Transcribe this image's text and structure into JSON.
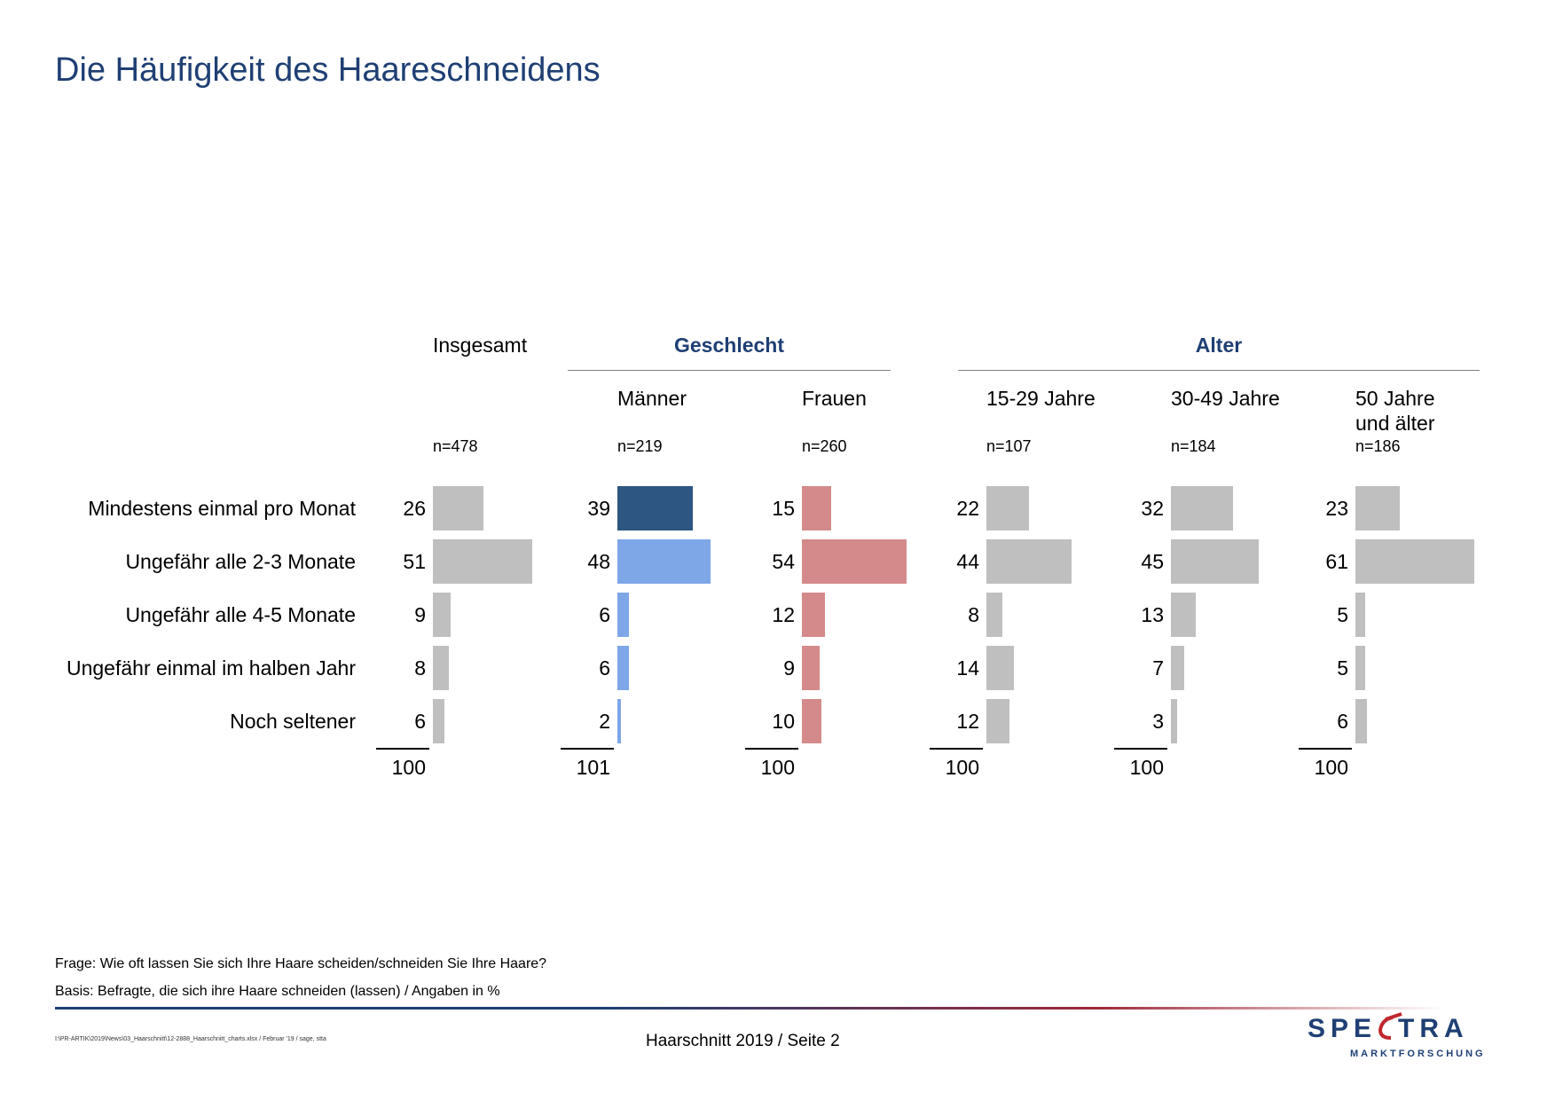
{
  "title": "Die Häufigkeit des Haareschneidens",
  "groups": {
    "insgesamt": "Insgesamt",
    "geschlecht": "Geschlecht",
    "alter": "Alter"
  },
  "footer": {
    "frage": "Frage: Wie oft lassen Sie sich Ihre Haare scheiden/schneiden Sie Ihre Haare?",
    "basis": "Basis: Befragte, die sich ihre Haare schneiden (lassen) / Angaben in %",
    "path": "I:\\PR-ARTIK\\2019\\News\\03_Haarschnitt\\12-2888_Haarschnitt_charts.xlsx / Februar '19 / sage, stta",
    "page": "Haarschnitt 2019  /  Seite  2"
  },
  "logo": {
    "name": "SPECTRA",
    "sub": "MARKTFORSCHUNG",
    "primary": "#1f3f74",
    "accent": "#c0282d"
  },
  "chart_data": {
    "type": "bar",
    "orientation": "horizontal",
    "unit": "%",
    "categories": [
      "Mindestens einmal pro Monat",
      "Ungefähr alle 2-3 Monate",
      "Ungefähr alle 4-5 Monate",
      "Ungefähr einmal im halben Jahr",
      "Noch seltener"
    ],
    "series": [
      {
        "name": "Insgesamt",
        "lines": [
          "",
          ""
        ],
        "n": "n=478",
        "values": [
          26,
          51,
          9,
          8,
          6
        ],
        "total": "100",
        "colors": [
          "#bfbfbf"
        ]
      },
      {
        "name": "Männer",
        "lines": [
          "Männer",
          ""
        ],
        "n": "n=219",
        "values": [
          39,
          48,
          6,
          6,
          2
        ],
        "total": "101",
        "colors": [
          "#2e5682",
          "#7ea7e8"
        ]
      },
      {
        "name": "Frauen",
        "lines": [
          "Frauen",
          ""
        ],
        "n": "n=260",
        "values": [
          15,
          54,
          12,
          9,
          10
        ],
        "total": "100",
        "colors": [
          "#d48a8a"
        ]
      },
      {
        "name": "15-29 Jahre",
        "lines": [
          "15-29 Jahre",
          ""
        ],
        "n": "n=107",
        "values": [
          22,
          44,
          8,
          14,
          12
        ],
        "total": "100",
        "colors": [
          "#bfbfbf"
        ]
      },
      {
        "name": "30-49 Jahre",
        "lines": [
          "30-49 Jahre",
          ""
        ],
        "n": "n=184",
        "values": [
          32,
          45,
          13,
          7,
          3
        ],
        "total": "100",
        "colors": [
          "#bfbfbf"
        ]
      },
      {
        "name": "50 Jahre und älter",
        "lines": [
          "50 Jahre",
          "und älter"
        ],
        "n": "n=186",
        "values": [
          23,
          61,
          5,
          5,
          6
        ],
        "total": "100",
        "colors": [
          "#bfbfbf"
        ]
      }
    ]
  }
}
